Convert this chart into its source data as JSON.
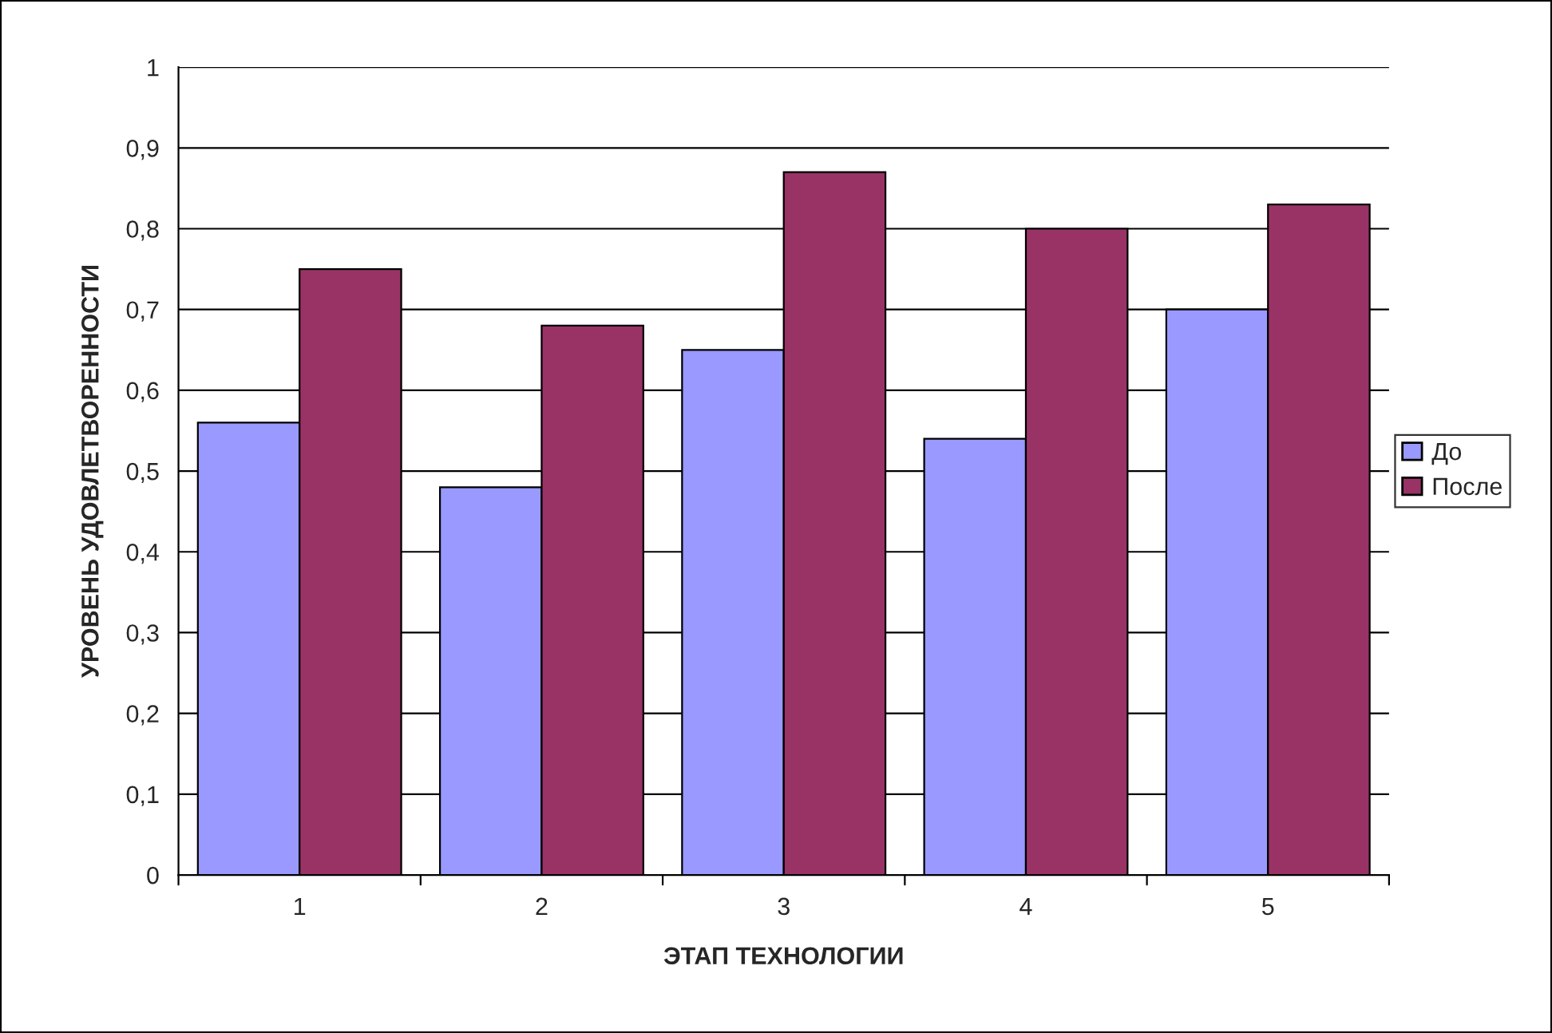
{
  "chart_data": {
    "type": "bar",
    "xlabel": "ЭТАП ТЕХНОЛОГИИ",
    "ylabel": "УРОВЕНЬ УДОВЛЕТВОРЕННОСТИ",
    "categories": [
      "1",
      "2",
      "3",
      "4",
      "5"
    ],
    "series": [
      {
        "name": "До",
        "color": "#9999ff",
        "values": [
          0.56,
          0.48,
          0.65,
          0.54,
          0.7
        ]
      },
      {
        "name": "После",
        "color": "#993366",
        "values": [
          0.75,
          0.68,
          0.87,
          0.8,
          0.83
        ]
      }
    ],
    "ylim": [
      0,
      1
    ],
    "yticks": [
      0,
      {
        "value": 0.1,
        "label": "0,1"
      },
      {
        "value": 0.2,
        "label": "0,2"
      },
      {
        "value": 0.3,
        "label": "0,3"
      },
      {
        "value": 0.4,
        "label": "0,4"
      },
      {
        "value": 0.5,
        "label": "0,5"
      },
      {
        "value": 0.6,
        "label": "0,6"
      },
      {
        "value": 0.7,
        "label": "0,7"
      },
      {
        "value": 0.8,
        "label": "0,8"
      },
      {
        "value": 0.9,
        "label": "0,9"
      },
      1
    ],
    "grid": "y",
    "legend": "right"
  }
}
